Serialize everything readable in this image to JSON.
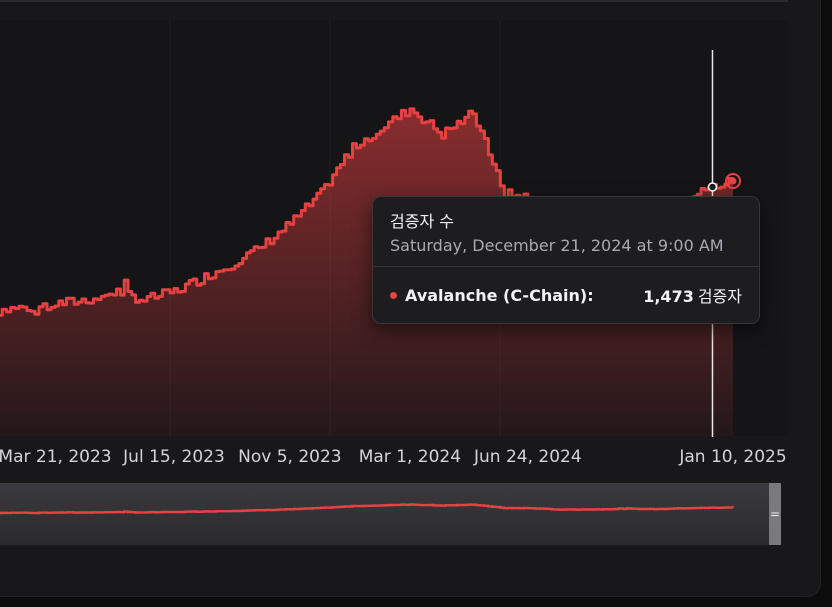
{
  "chart_data": {
    "type": "area",
    "x_tick_labels": [
      "Mar 21, 2023",
      "Jul 15, 2023",
      "Nov 5, 2023",
      "Mar 1, 2024",
      "Jun 24, 2024",
      "Jan 10, 2025"
    ],
    "series": [
      {
        "name": "Avalanche (C-Chain)",
        "color": "#e84142",
        "x": [
          "2023-01-12",
          "2023-02-10",
          "2023-03-21",
          "2023-04-20",
          "2023-05-20",
          "2023-06-15",
          "2023-07-15",
          "2023-08-10",
          "2023-09-05",
          "2023-10-05",
          "2023-11-05",
          "2023-12-05",
          "2024-01-05",
          "2024-02-05",
          "2024-03-01",
          "2024-04-01",
          "2024-05-01",
          "2024-06-01",
          "2024-06-24",
          "2024-07-25",
          "2024-08-25",
          "2024-09-25",
          "2024-10-25",
          "2024-11-25",
          "2024-12-21",
          "2025-01-10"
        ],
        "values": [
          1325,
          1330,
          1335,
          1340,
          1350,
          1340,
          1350,
          1365,
          1380,
          1400,
          1430,
          1465,
          1520,
          1545,
          1565,
          1535,
          1560,
          1465,
          1460,
          1420,
          1425,
          1445,
          1435,
          1460,
          1473,
          1480
        ]
      }
    ],
    "crosshair_x": "2024-12-21",
    "navigator": true,
    "grid": false
  },
  "tooltip": {
    "title": "검증자 수",
    "date": "Saturday, December 21, 2024 at 9:00 AM",
    "series": "Avalanche (C-Chain):",
    "value": "1,473",
    "unit": "검증자"
  },
  "navigator": {
    "handle_glyph": "="
  }
}
